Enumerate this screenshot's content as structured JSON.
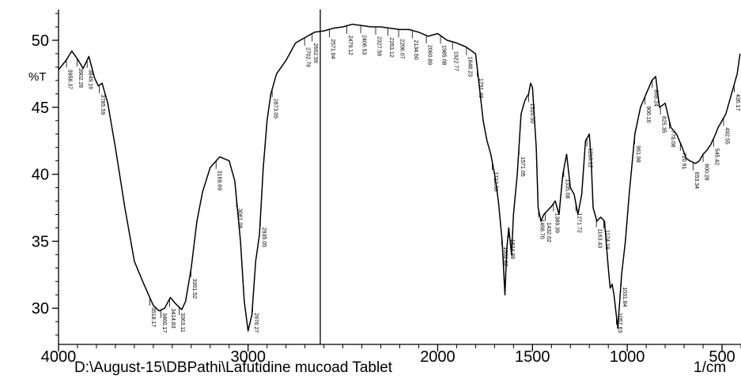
{
  "chart_data": {
    "type": "line",
    "x_axis": {
      "reversed": true,
      "xlim": [
        4000,
        400
      ],
      "ticks": [
        4000,
        3000,
        2000,
        1500,
        1000,
        500
      ],
      "tick_labels": [
        "4000",
        "3000",
        "2000",
        "1500",
        "1000",
        "500"
      ]
    },
    "y_axis": {
      "ylim": [
        27.3,
        52.3
      ],
      "ticks": [
        30,
        35,
        40,
        45,
        50
      ],
      "tick_labels": [
        "30",
        "35",
        "40",
        "45",
        "50"
      ],
      "label": "%T"
    },
    "grid": false,
    "x_unit_label": "1/cm",
    "file_label": "D:\\August-15\\DBPathi\\Lafutidine mucoad Tablet",
    "color": "#000000",
    "series": [
      {
        "x": [
          4000,
          3960,
          3930,
          3900,
          3870,
          3840,
          3810,
          3790,
          3770,
          3740,
          3700,
          3650,
          3600,
          3550,
          3500,
          3470,
          3440,
          3410,
          3380,
          3350,
          3330,
          3300,
          3270,
          3240,
          3200,
          3150,
          3100,
          3070,
          3040,
          3020,
          3000,
          2980,
          2960,
          2940,
          2920,
          2900,
          2880,
          2850,
          2800,
          2750,
          2700,
          2650,
          2600,
          2550,
          2500,
          2450,
          2400,
          2350,
          2300,
          2250,
          2200,
          2150,
          2100,
          2050,
          2000,
          1950,
          1900,
          1850,
          1800,
          1780,
          1760,
          1740,
          1720,
          1700,
          1680,
          1660,
          1645,
          1635,
          1625,
          1610,
          1600,
          1580,
          1560,
          1540,
          1520,
          1510,
          1500,
          1480,
          1470,
          1455,
          1440,
          1420,
          1400,
          1380,
          1360,
          1340,
          1320,
          1300,
          1280,
          1260,
          1240,
          1220,
          1200,
          1190,
          1180,
          1160,
          1140,
          1120,
          1100,
          1090,
          1080,
          1070,
          1050,
          1030,
          1010,
          990,
          960,
          930,
          900,
          870,
          850,
          830,
          800,
          770,
          740,
          710,
          690,
          670,
          640,
          620,
          600,
          580,
          560,
          540,
          520,
          500,
          480,
          460,
          440,
          420,
          405
        ],
        "y": [
          47.8,
          48.5,
          49.2,
          48.6,
          47.9,
          48.8,
          47.2,
          46.6,
          46.8,
          45.3,
          42.0,
          37.5,
          33.5,
          31.8,
          30.2,
          29.8,
          30.0,
          30.8,
          30.3,
          29.9,
          30.5,
          33.0,
          36.5,
          38.7,
          40.5,
          41.3,
          41.0,
          39.5,
          35.0,
          30.5,
          28.3,
          29.5,
          33.5,
          35.5,
          40.5,
          44.0,
          46.0,
          47.5,
          48.5,
          49.8,
          50.2,
          50.6,
          50.7,
          50.9,
          51.0,
          51.2,
          51.1,
          51.0,
          51.0,
          50.9,
          50.8,
          50.8,
          50.6,
          50.3,
          50.5,
          50.0,
          49.8,
          49.5,
          49.0,
          46.5,
          44.0,
          42.5,
          41.5,
          40.0,
          38.0,
          35.0,
          31.0,
          34.5,
          36.0,
          34.0,
          37.0,
          40.0,
          44.5,
          45.5,
          46.0,
          46.8,
          46.5,
          42.0,
          37.5,
          36.5,
          37.0,
          37.3,
          37.6,
          38.0,
          37.0,
          40.0,
          41.5,
          39.0,
          38.5,
          37.0,
          38.5,
          42.5,
          43.0,
          41.0,
          37.5,
          36.5,
          36.8,
          36.5,
          33.0,
          31.5,
          31.8,
          31.0,
          28.5,
          32.5,
          35.0,
          38.5,
          43.0,
          45.0,
          46.0,
          47.0,
          47.3,
          45.0,
          45.3,
          43.5,
          43.0,
          42.0,
          41.2,
          41.0,
          40.8,
          41.0,
          41.5,
          41.8,
          42.2,
          42.8,
          43.5,
          44.0,
          44.5,
          45.5,
          46.5,
          47.5,
          49.0
        ]
      }
    ],
    "peak_labels": [
      {
        "text": "3958.37",
        "x": 3958
      },
      {
        "text": "3902.26",
        "x": 3902
      },
      {
        "text": "3849.16",
        "x": 3849
      },
      {
        "text": "3785.59",
        "x": 3785
      },
      {
        "text": "3518.17",
        "x": 3518
      },
      {
        "text": "3460.17",
        "x": 3460
      },
      {
        "text": "3414.83",
        "x": 3414
      },
      {
        "text": "3363.11",
        "x": 3363
      },
      {
        "text": "3301.52",
        "x": 3301
      },
      {
        "text": "3169.69",
        "x": 3169
      },
      {
        "text": "3061.06",
        "x": 3061
      },
      {
        "text": "2976.27",
        "x": 2976
      },
      {
        "text": "2935.05",
        "x": 2935
      },
      {
        "text": "2873.05",
        "x": 2873
      },
      {
        "text": "2702.76",
        "x": 2702
      },
      {
        "text": "2662.59",
        "x": 2662
      },
      {
        "text": "2571.64",
        "x": 2571
      },
      {
        "text": "2479.12",
        "x": 2479
      },
      {
        "text": "2406.53",
        "x": 2406
      },
      {
        "text": "2327.56",
        "x": 2327
      },
      {
        "text": "2263.12",
        "x": 2263
      },
      {
        "text": "2206.07",
        "x": 2206
      },
      {
        "text": "2134.60",
        "x": 2134
      },
      {
        "text": "2060.89",
        "x": 2060
      },
      {
        "text": "1985.08",
        "x": 1985
      },
      {
        "text": "1922.77",
        "x": 1922
      },
      {
        "text": "1848.23",
        "x": 1848
      },
      {
        "text": "1791.49",
        "x": 1791
      },
      {
        "text": "1712.06",
        "x": 1712
      },
      {
        "text": "1662.82",
        "x": 1662
      },
      {
        "text": "1624.88",
        "x": 1624
      },
      {
        "text": "1571.05",
        "x": 1571
      },
      {
        "text": "1520.50",
        "x": 1520
      },
      {
        "text": "1468.70",
        "x": 1468
      },
      {
        "text": "1432.62",
        "x": 1432
      },
      {
        "text": "1389.39",
        "x": 1389
      },
      {
        "text": "1335.08",
        "x": 1335
      },
      {
        "text": "1271.72",
        "x": 1271
      },
      {
        "text": "1213.12",
        "x": 1213
      },
      {
        "text": "1163.43",
        "x": 1163
      },
      {
        "text": "1124.18",
        "x": 1124
      },
      {
        "text": "1057.63",
        "x": 1057
      },
      {
        "text": "1031.84",
        "x": 1031
      },
      {
        "text": "961.98",
        "x": 961
      },
      {
        "text": "906.16",
        "x": 906
      },
      {
        "text": "868.24",
        "x": 868
      },
      {
        "text": "825.35",
        "x": 825
      },
      {
        "text": "778.08",
        "x": 778
      },
      {
        "text": "720.91",
        "x": 720
      },
      {
        "text": "653.34",
        "x": 653
      },
      {
        "text": "600.28",
        "x": 600
      },
      {
        "text": "545.42",
        "x": 545
      },
      {
        "text": "492.55",
        "x": 492
      },
      {
        "text": "436.17",
        "x": 436
      }
    ]
  }
}
